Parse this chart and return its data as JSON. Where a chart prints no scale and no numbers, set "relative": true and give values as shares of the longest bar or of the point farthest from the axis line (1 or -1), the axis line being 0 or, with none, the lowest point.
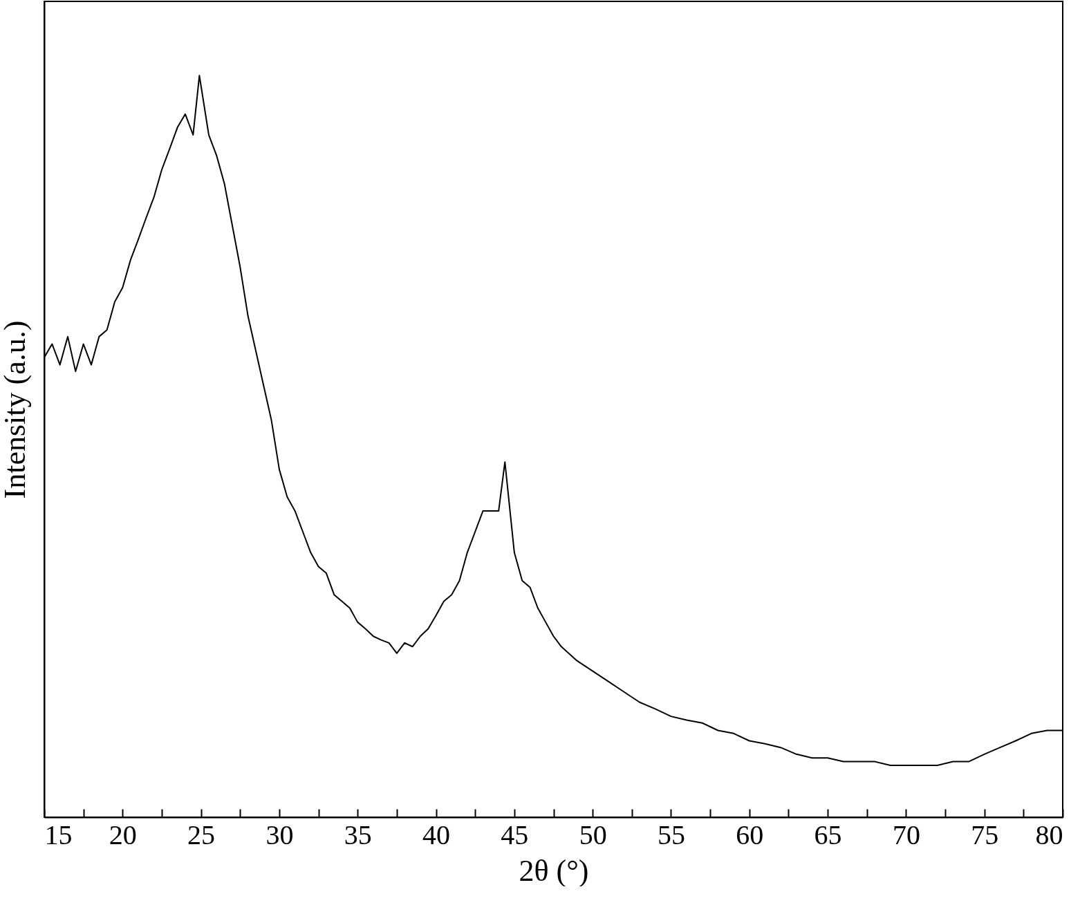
{
  "chart_data": {
    "type": "line",
    "xlabel": "2θ (°)",
    "ylabel": "Intensity (a.u.)",
    "relative": true,
    "xlim": [
      15,
      80
    ],
    "xticks": [
      15,
      {
        "value": 17.5,
        "label": null
      },
      20,
      {
        "value": 22.5,
        "label": null
      },
      25,
      {
        "value": 27.5,
        "label": null
      },
      30,
      {
        "value": 32.5,
        "label": null
      },
      35,
      {
        "value": 37.5,
        "label": null
      },
      40,
      {
        "value": 42.5,
        "label": null
      },
      45,
      {
        "value": 47.5,
        "label": null
      },
      50,
      {
        "value": 52.5,
        "label": null
      },
      55,
      {
        "value": 57.5,
        "label": null
      },
      60,
      {
        "value": 62.5,
        "label": null
      },
      65,
      {
        "value": 67.5,
        "label": null
      },
      70,
      {
        "value": 72.5,
        "label": null
      },
      75,
      {
        "value": 77.5,
        "label": null
      },
      80
    ],
    "grid": false,
    "marker": "none",
    "line_style": "solid",
    "series": [
      {
        "color": "#000000",
        "x": [
          15,
          15.5,
          16,
          16.5,
          17,
          17.5,
          18,
          18.5,
          19,
          19.5,
          20,
          20.5,
          21,
          21.5,
          22,
          22.5,
          23,
          23.5,
          24,
          24.5,
          24.9,
          25.5,
          26,
          26.5,
          27,
          27.5,
          28,
          28.5,
          29,
          29.5,
          30,
          30.5,
          31,
          31.5,
          32,
          32.5,
          33,
          33.5,
          34,
          34.5,
          35,
          35.5,
          36,
          36.5,
          37,
          37.5,
          38,
          38.5,
          39,
          39.5,
          40,
          40.5,
          41,
          41.5,
          42,
          42.5,
          43,
          43.5,
          44,
          44.4,
          45,
          45.5,
          46,
          46.5,
          47,
          47.5,
          48,
          49,
          50,
          51,
          52,
          53,
          54,
          55,
          56,
          57,
          58,
          59,
          60,
          61,
          62,
          63,
          64,
          65,
          66,
          67,
          68,
          69,
          70,
          71,
          72,
          73,
          74,
          75,
          76,
          77,
          78,
          79,
          80
        ],
        "values": [
          0.62,
          0.638,
          0.61,
          0.648,
          0.601,
          0.638,
          0.61,
          0.648,
          0.657,
          0.695,
          0.714,
          0.751,
          0.779,
          0.808,
          0.836,
          0.873,
          0.901,
          0.93,
          0.948,
          0.92,
          1,
          0.92,
          0.892,
          0.854,
          0.798,
          0.742,
          0.676,
          0.629,
          0.582,
          0.535,
          0.469,
          0.432,
          0.413,
          0.385,
          0.357,
          0.338,
          0.329,
          0.3,
          0.291,
          0.282,
          0.263,
          0.254,
          0.244,
          0.239,
          0.235,
          0.221,
          0.235,
          0.23,
          0.244,
          0.254,
          0.272,
          0.291,
          0.3,
          0.319,
          0.357,
          0.385,
          0.413,
          0.413,
          0.413,
          0.479,
          0.357,
          0.319,
          0.31,
          0.282,
          0.263,
          0.244,
          0.23,
          0.211,
          0.197,
          0.183,
          0.169,
          0.155,
          0.146,
          0.136,
          0.131,
          0.127,
          0.117,
          0.113,
          0.103,
          0.099,
          0.094,
          0.085,
          0.08,
          0.08,
          0.075,
          0.075,
          0.075,
          0.07,
          0.07,
          0.07,
          0.07,
          0.075,
          0.075,
          0.085,
          0.094,
          0.103,
          0.113,
          0.117,
          0.117
        ]
      }
    ]
  }
}
